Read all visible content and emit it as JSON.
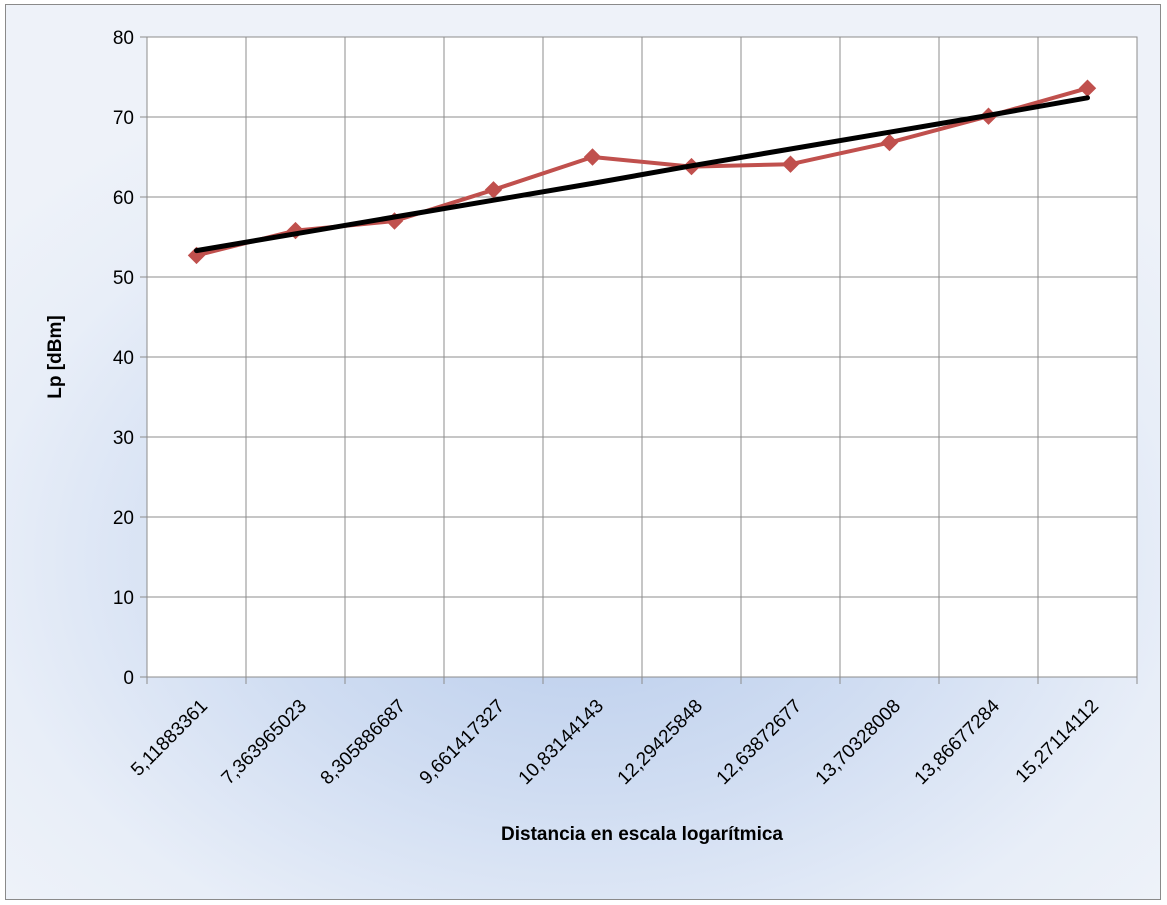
{
  "chart_data": {
    "type": "line",
    "title": "",
    "xlabel": "Distancia en escala logarítmica",
    "ylabel": "Lp [dBm]",
    "categories": [
      "5,11883361",
      "7,363965023",
      "8,305886687",
      "9,661417327",
      "10,83144143",
      "12,29425848",
      "12,63872677",
      "13,70328008",
      "13,86677284",
      "15,27114112"
    ],
    "series": [
      {
        "values": [
          52.7,
          55.8,
          57.0,
          60.9,
          65.0,
          63.8,
          64.1,
          66.8,
          70.1,
          73.6
        ],
        "color": "#c0504d",
        "marker": "diamond"
      },
      {
        "values": [
          53.3,
          55.4,
          57.5,
          59.6,
          61.7,
          63.9,
          66.0,
          68.1,
          70.2,
          72.4
        ],
        "color": "#000000",
        "marker": "none",
        "kind": "linear trendline"
      }
    ],
    "yticks": [
      "0",
      "10",
      "20",
      "30",
      "40",
      "50",
      "60",
      "70",
      "80"
    ],
    "ylim": [
      0,
      80
    ],
    "grid": true,
    "legend": "none"
  }
}
